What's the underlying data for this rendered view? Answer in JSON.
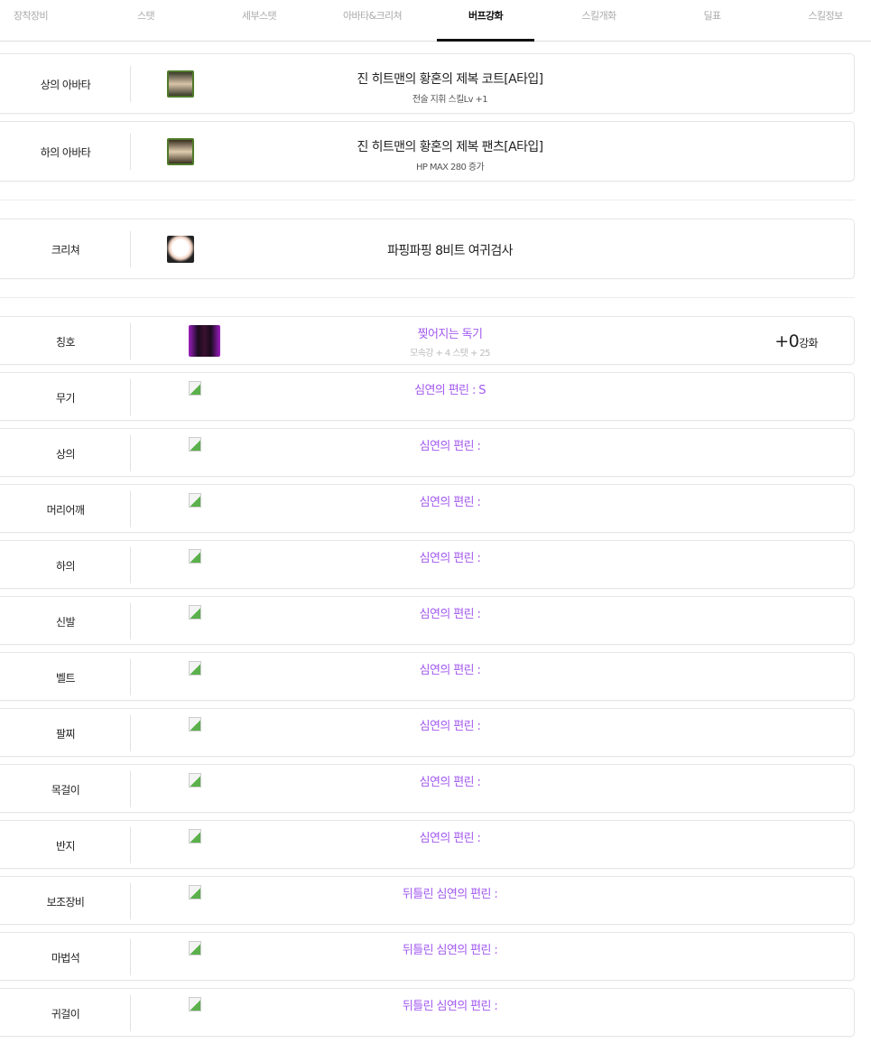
{
  "tabs": [
    "장착장비",
    "스탯",
    "세부스탯",
    "아바타&크리쳐",
    "버프강화",
    "스킬개화",
    "딜표",
    "스킬정보"
  ],
  "active_tab": "버프강화",
  "avatars": [
    {
      "slot": "상의 아바타",
      "name": "진 히트맨의 황혼의 제복 코트[A타입]",
      "option": "전술 지휘 스킬Lv +1",
      "icon": "coat-avatar-icon"
    },
    {
      "slot": "하의 아바타",
      "name": "진 히트맨의 황혼의 제복 팬츠[A타입]",
      "option": "HP MAX 280 증가",
      "icon": "pants-avatar-icon"
    }
  ],
  "creature": {
    "slot": "크리쳐",
    "name": "파핑파핑 8비트 여귀검사",
    "icon": "creature-icon"
  },
  "title": {
    "slot": "칭호",
    "name": "찢어지는 독기",
    "option": "모속강 + 4 스탯 + 25",
    "enhance_value": "+0",
    "enhance_unit": "강화"
  },
  "equipment": [
    {
      "slot": "무기",
      "name": "심연의 편린 : S"
    },
    {
      "slot": "상의",
      "name": "심연의 편린 :"
    },
    {
      "slot": "머리어깨",
      "name": "심연의 편린 :"
    },
    {
      "slot": "하의",
      "name": "심연의 편린 :"
    },
    {
      "slot": "신발",
      "name": "심연의 편린 :"
    },
    {
      "slot": "벨트",
      "name": "심연의 편린 :"
    },
    {
      "slot": "팔찌",
      "name": "심연의 편린 :"
    },
    {
      "slot": "목걸이",
      "name": "심연의 편린 :"
    },
    {
      "slot": "반지",
      "name": "심연의 편린 :"
    },
    {
      "slot": "보조장비",
      "name": "뒤틀린 심연의 편린 :"
    },
    {
      "slot": "마법석",
      "name": "뒤틀린 심연의 편린 :"
    },
    {
      "slot": "귀걸이",
      "name": "뒤틀린 심연의 편린 :"
    }
  ],
  "colors": {
    "accent_purple": "#a259f0",
    "active_tab": "#111111"
  }
}
